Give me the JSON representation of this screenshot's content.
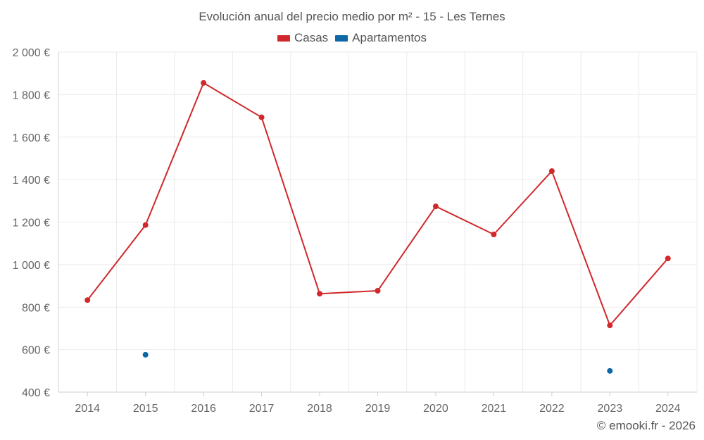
{
  "chart_data": {
    "type": "line",
    "title": "Evolución anual del precio medio por m² - 15 - Les Ternes",
    "categories": [
      "2014",
      "2015",
      "2016",
      "2017",
      "2018",
      "2019",
      "2020",
      "2021",
      "2022",
      "2023",
      "2024"
    ],
    "series": [
      {
        "name": "Casas",
        "color": "#d0282b",
        "values": [
          833,
          1186,
          1855,
          1693,
          863,
          877,
          1274,
          1142,
          1440,
          714,
          1029
        ],
        "lines": true
      },
      {
        "name": "Apartamentos",
        "color": "#0f67a6",
        "values": [
          null,
          576,
          null,
          null,
          null,
          null,
          null,
          null,
          null,
          500,
          null
        ],
        "lines": true
      }
    ],
    "y_ticks": [
      "2 000 €",
      "1 800 €",
      "1 600 €",
      "1 400 €",
      "1 200 €",
      "1 000 €",
      "800 €",
      "600 €",
      "400 €"
    ],
    "y_tick_values": [
      2000,
      1800,
      1600,
      1400,
      1200,
      1000,
      800,
      600,
      400
    ],
    "ylim": [
      400,
      2000
    ],
    "grid": true,
    "legend": "top-center",
    "xlabel": "",
    "ylabel": ""
  },
  "credit": "© emooki.fr - 2026"
}
